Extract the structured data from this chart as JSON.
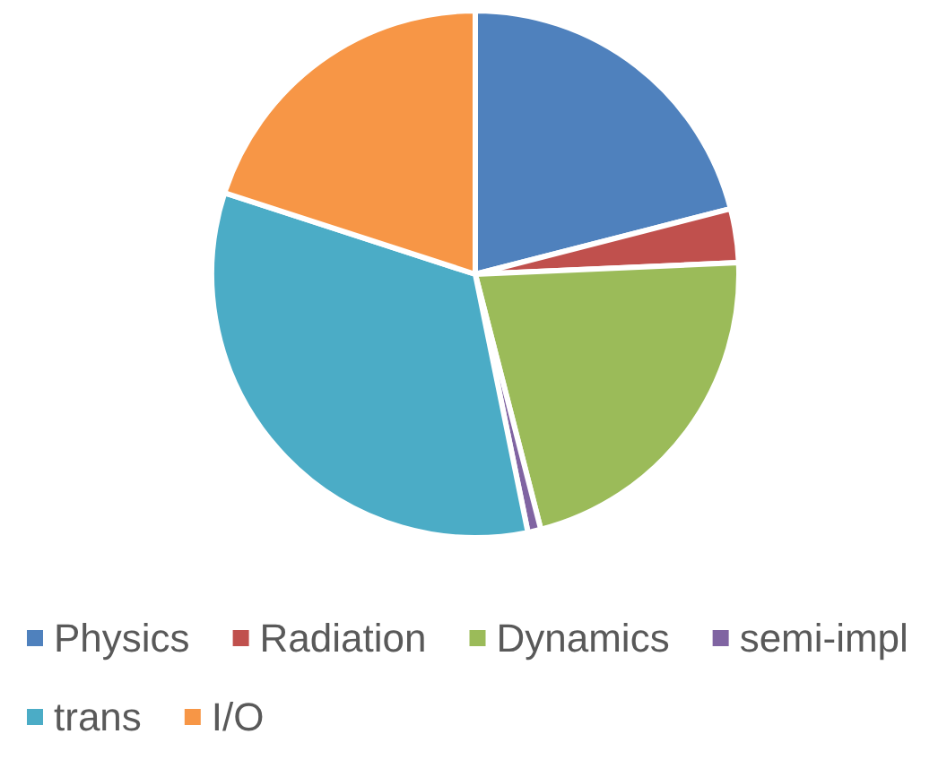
{
  "chart_data": {
    "type": "pie",
    "categories": [
      "Physics",
      "Radiation",
      "Dynamics",
      "semi-impl",
      "trans",
      "I/O"
    ],
    "values": [
      21,
      3.3,
      21.7,
      0.8,
      33.2,
      20
    ],
    "colors": [
      "#4f81bd",
      "#c0504d",
      "#9bbb59",
      "#8064a2",
      "#4bacc6",
      "#f79646"
    ],
    "legend": "bottom"
  }
}
